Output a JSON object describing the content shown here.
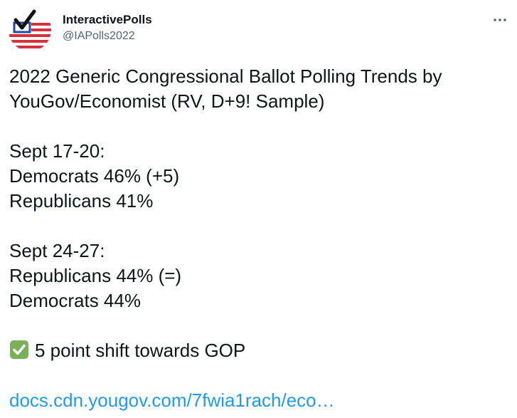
{
  "author": {
    "display_name": "InteractivePolls",
    "handle": "@IAPolls2022",
    "avatar_icon": "checkmark-flag-logo"
  },
  "menu": {
    "icon": "more-icon"
  },
  "tweet": {
    "title_line1": "2022 Generic Congressional Ballot Polling Trends by",
    "title_line2": "YouGov/Economist (RV, D+9! Sample)",
    "poll1": {
      "date": "Sept 17-20:",
      "line1": "Democrats 46% (+5)",
      "line2": "Republicans 41%"
    },
    "poll2": {
      "date": "Sept 24-27:",
      "line1": "Republicans 44% (=)",
      "line2": "Democrats 44%"
    },
    "summary": {
      "icon": "check-mark-button-icon",
      "text": "5 point shift towards GOP"
    },
    "link_text": "docs.cdn.yougov.com/7fwia1rach/eco…"
  },
  "colors": {
    "text": "#0f1419",
    "secondary": "#536471",
    "link": "#1d9bf0",
    "check_green": "#78b159",
    "flag_red": "#d6313c",
    "flag_blue": "#1f4aa8"
  }
}
